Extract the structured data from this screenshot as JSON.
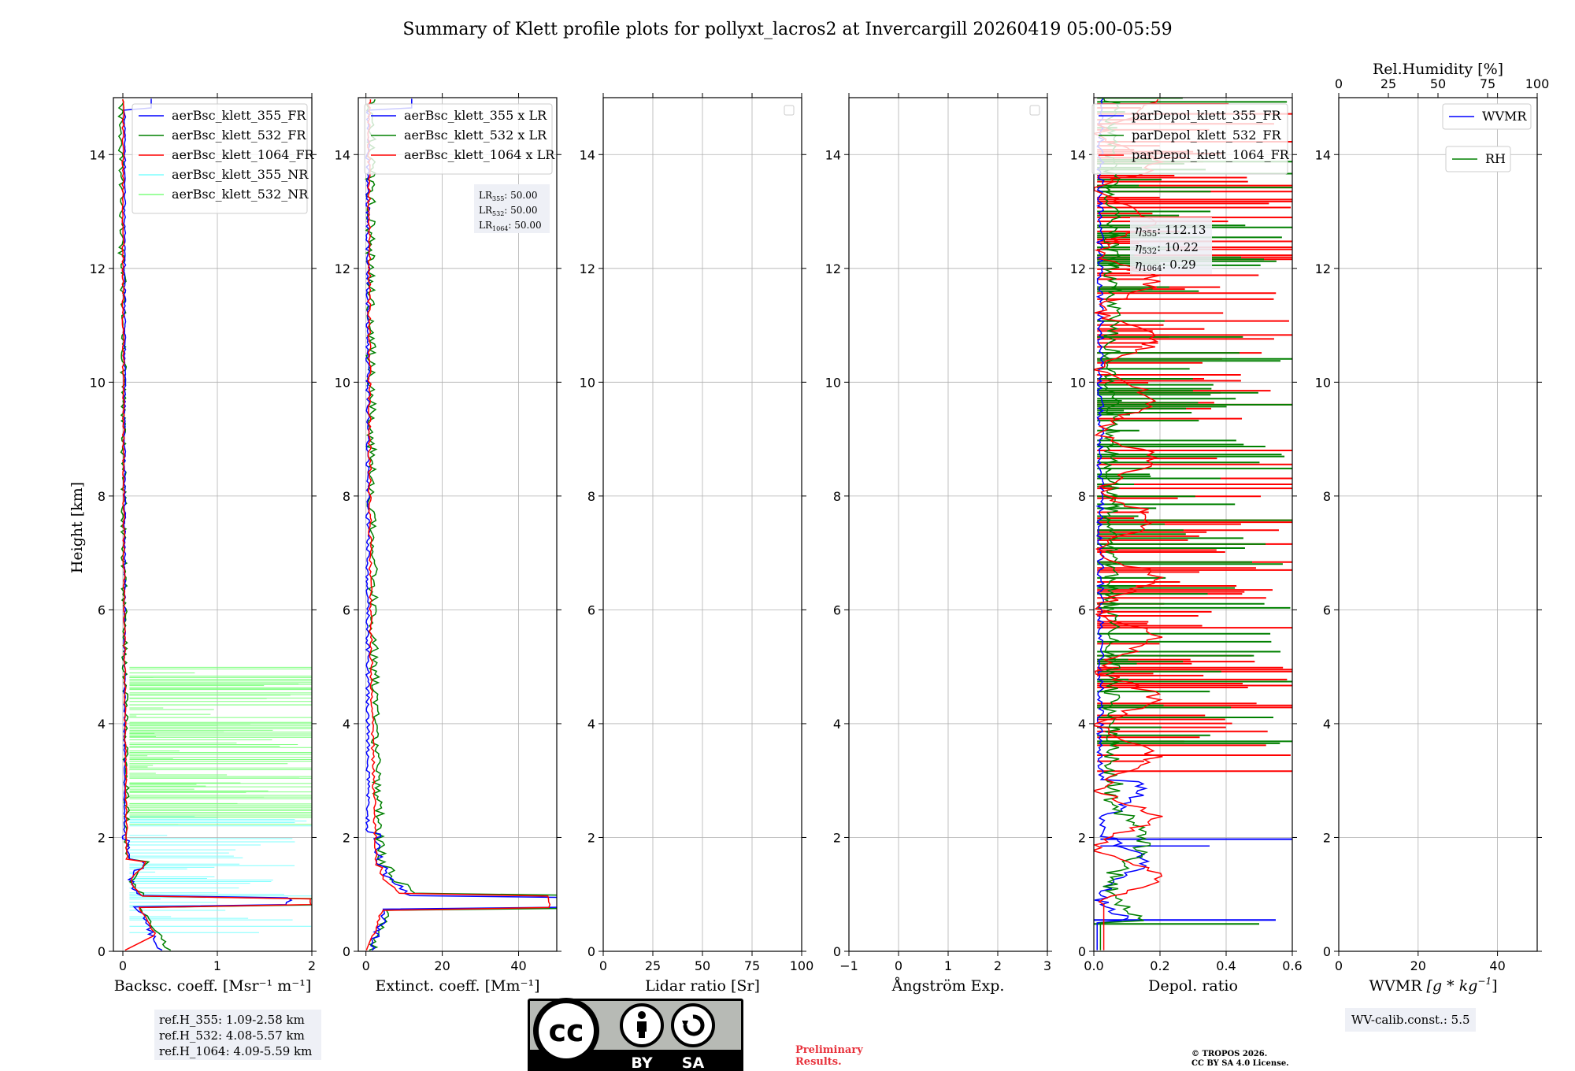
{
  "chart_data": {
    "title": "Summary of Klett profile plots for pollyxt_lacros2 at Invercargill 20260419 05:00-05:59",
    "ylabel": "Height [km]",
    "ylim": [
      0,
      15
    ],
    "yticks": [
      0,
      2,
      4,
      6,
      8,
      10,
      12,
      14
    ],
    "panels": [
      {
        "id": "backscatter",
        "type": "line",
        "xlabel": "Backsc. coeff. [Msr⁻¹ m⁻¹]",
        "xlim": [
          -0.1,
          2
        ],
        "xticks": [
          0,
          1,
          2
        ],
        "legend_location": "upper-right",
        "series": [
          {
            "name": "aerBsc_klett_355_FR",
            "color": "#0000ff"
          },
          {
            "name": "aerBsc_klett_532_FR",
            "color": "#008000"
          },
          {
            "name": "aerBsc_klett_1064_FR",
            "color": "#ff0000"
          },
          {
            "name": "aerBsc_klett_355_NR",
            "color": "#7fffff"
          },
          {
            "name": "aerBsc_klett_532_NR",
            "color": "#7fff7f"
          }
        ],
        "infobox_lines": [
          "ref.H_355: 1.09-2.58 km",
          "ref.H_532: 4.08-5.57 km",
          "ref.H_1064: 4.09-5.59 km"
        ]
      },
      {
        "id": "extinction",
        "type": "line",
        "xlabel": "Extinct. coeff. [Mm⁻¹]",
        "xlim": [
          -2,
          50
        ],
        "xticks": [
          0,
          20,
          40
        ],
        "legend_location": "upper-right",
        "series": [
          {
            "name": "aerBsc_klett_355 x LR",
            "color": "#0000ff"
          },
          {
            "name": "aerBsc_klett_532 x LR",
            "color": "#008000"
          },
          {
            "name": "aerBsc_klett_1064 x LR",
            "color": "#ff0000"
          }
        ],
        "lr_box": [
          {
            "base": "LR",
            "sub": "355",
            "value": ": 50.00"
          },
          {
            "base": "LR",
            "sub": "532",
            "value": ": 50.00"
          },
          {
            "base": "LR",
            "sub": "1064",
            "value": ": 50.00"
          }
        ]
      },
      {
        "id": "lidar_ratio",
        "type": "line",
        "xlabel": "Lidar ratio [Sr]",
        "xlim": [
          0,
          100
        ],
        "xticks": [
          0,
          25,
          50,
          75,
          100
        ],
        "legend_location": "upper-right",
        "series": []
      },
      {
        "id": "angstrom",
        "type": "line",
        "xlabel": "Ångström Exp.",
        "xlim": [
          -1,
          3
        ],
        "xticks": [
          -1,
          0,
          1,
          2,
          3
        ],
        "legend_location": "upper-right",
        "series": []
      },
      {
        "id": "depol",
        "type": "line",
        "xlabel": "Depol. ratio",
        "xlim": [
          0,
          0.6
        ],
        "xticks": [
          0.0,
          0.2,
          0.4,
          0.6
        ],
        "legend_location": "upper-right",
        "series": [
          {
            "name": "parDepol_klett_355_FR",
            "color": "#0000ff"
          },
          {
            "name": "parDepol_klett_532_FR",
            "color": "#008000"
          },
          {
            "name": "parDepol_klett_1064_FR",
            "color": "#ff0000"
          }
        ],
        "eta_box": [
          {
            "sub": "355",
            "value": ": 112.13"
          },
          {
            "sub": "532",
            "value": ": 10.22"
          },
          {
            "sub": "1064",
            "value": ": 0.29"
          }
        ]
      },
      {
        "id": "wvmr",
        "type": "line",
        "xlabel": "WVMR",
        "xlim": [
          0,
          50
        ],
        "xticks": [
          0,
          20,
          40
        ],
        "top_xlabel": "Rel.Humidity [%]",
        "top_xlim": [
          0,
          100
        ],
        "top_xticks": [
          0,
          25,
          50,
          75,
          100
        ],
        "series": [
          {
            "name": "WVMR",
            "color": "#0000ff"
          },
          {
            "name": "RH",
            "color": "#008000"
          }
        ],
        "infobox_lines": [
          "WV-calib.const.: 5.5"
        ]
      }
    ],
    "footer": {
      "license_badge": [
        "BY",
        "SA"
      ],
      "preliminary": [
        "Preliminary",
        "Results."
      ],
      "copyright": [
        "© TROPOS 2026.",
        "CC BY SA 4.0 License."
      ]
    }
  }
}
